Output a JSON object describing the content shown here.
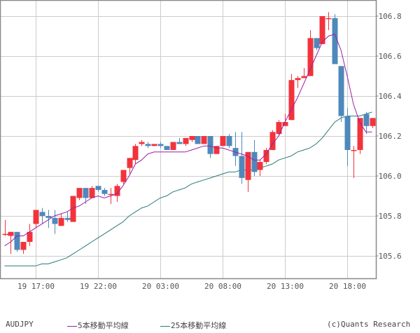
{
  "chart_data": {
    "type": "candlestick",
    "symbol": "AUDJPY",
    "interval_minutes": 30,
    "ylim": [
      105.51,
      106.88
    ],
    "y_ticks": [
      105.6,
      105.8,
      106.0,
      106.2,
      106.4,
      106.6,
      106.8
    ],
    "x_ticks": [
      {
        "label": "19 17:00",
        "index": 5
      },
      {
        "label": "19 22:00",
        "index": 15
      },
      {
        "label": "20 03:00",
        "index": 25
      },
      {
        "label": "20 08:00",
        "index": 35
      },
      {
        "label": "20 13:00",
        "index": 45
      },
      {
        "label": "20 18:00",
        "index": 55
      }
    ],
    "grid": true,
    "legend_position": "bottom",
    "candles": [
      {
        "o": 105.71,
        "h": 105.78,
        "l": 105.7,
        "c": 105.71
      },
      {
        "o": 105.7,
        "h": 105.72,
        "l": 105.61,
        "c": 105.72
      },
      {
        "o": 105.72,
        "h": 105.72,
        "l": 105.62,
        "c": 105.63
      },
      {
        "o": 105.63,
        "h": 105.67,
        "l": 105.61,
        "c": 105.67
      },
      {
        "o": 105.67,
        "h": 105.76,
        "l": 105.65,
        "c": 105.72
      },
      {
        "o": 105.76,
        "h": 105.83,
        "l": 105.74,
        "c": 105.83
      },
      {
        "o": 105.82,
        "h": 105.84,
        "l": 105.76,
        "c": 105.8
      },
      {
        "o": 105.8,
        "h": 105.83,
        "l": 105.74,
        "c": 105.79
      },
      {
        "o": 105.79,
        "h": 105.83,
        "l": 105.71,
        "c": 105.76
      },
      {
        "o": 105.75,
        "h": 105.81,
        "l": 105.75,
        "c": 105.79
      },
      {
        "o": 105.79,
        "h": 105.82,
        "l": 105.77,
        "c": 105.78
      },
      {
        "o": 105.77,
        "h": 105.9,
        "l": 105.77,
        "c": 105.9
      },
      {
        "o": 105.89,
        "h": 105.93,
        "l": 105.88,
        "c": 105.94
      },
      {
        "o": 105.94,
        "h": 105.94,
        "l": 105.86,
        "c": 105.89
      },
      {
        "o": 105.89,
        "h": 105.95,
        "l": 105.89,
        "c": 105.94
      },
      {
        "o": 105.95,
        "h": 105.95,
        "l": 105.92,
        "c": 105.93
      },
      {
        "o": 105.93,
        "h": 105.94,
        "l": 105.9,
        "c": 105.91
      },
      {
        "o": 105.91,
        "h": 105.94,
        "l": 105.86,
        "c": 105.91
      },
      {
        "o": 105.9,
        "h": 105.96,
        "l": 105.87,
        "c": 105.95
      },
      {
        "o": 105.97,
        "h": 106.03,
        "l": 105.96,
        "c": 106.03
      },
      {
        "o": 106.04,
        "h": 106.09,
        "l": 106.01,
        "c": 106.09
      },
      {
        "o": 106.08,
        "h": 106.16,
        "l": 106.06,
        "c": 106.15
      },
      {
        "o": 106.16,
        "h": 106.18,
        "l": 106.15,
        "c": 106.17
      },
      {
        "o": 106.16,
        "h": 106.17,
        "l": 106.14,
        "c": 106.15
      },
      {
        "o": 106.15,
        "h": 106.16,
        "l": 106.15,
        "c": 106.16
      },
      {
        "o": 106.16,
        "h": 106.17,
        "l": 106.14,
        "c": 106.15
      },
      {
        "o": 106.15,
        "h": 106.15,
        "l": 106.14,
        "c": 106.13
      },
      {
        "o": 106.13,
        "h": 106.17,
        "l": 106.13,
        "c": 106.17
      },
      {
        "o": 106.17,
        "h": 106.19,
        "l": 106.16,
        "c": 106.16
      },
      {
        "o": 106.16,
        "h": 106.19,
        "l": 106.15,
        "c": 106.19
      },
      {
        "o": 106.18,
        "h": 106.2,
        "l": 106.17,
        "c": 106.2
      },
      {
        "o": 106.2,
        "h": 106.2,
        "l": 106.16,
        "c": 106.16
      },
      {
        "o": 106.16,
        "h": 106.2,
        "l": 106.16,
        "c": 106.2
      },
      {
        "o": 106.2,
        "h": 106.2,
        "l": 106.09,
        "c": 106.11
      },
      {
        "o": 106.11,
        "h": 106.15,
        "l": 106.11,
        "c": 106.15
      },
      {
        "o": 106.15,
        "h": 106.2,
        "l": 106.15,
        "c": 106.2
      },
      {
        "o": 106.2,
        "h": 106.21,
        "l": 106.14,
        "c": 106.15
      },
      {
        "o": 106.14,
        "h": 106.22,
        "l": 106.05,
        "c": 106.1
      },
      {
        "o": 106.1,
        "h": 106.22,
        "l": 105.96,
        "c": 105.99
      },
      {
        "o": 105.98,
        "h": 106.11,
        "l": 105.92,
        "c": 106.12
      },
      {
        "o": 106.12,
        "h": 106.18,
        "l": 106.0,
        "c": 106.02
      },
      {
        "o": 106.03,
        "h": 106.08,
        "l": 106.0,
        "c": 106.07
      },
      {
        "o": 106.07,
        "h": 106.14,
        "l": 106.06,
        "c": 106.13
      },
      {
        "o": 106.13,
        "h": 106.23,
        "l": 106.13,
        "c": 106.22
      },
      {
        "o": 106.21,
        "h": 106.28,
        "l": 106.2,
        "c": 106.27
      },
      {
        "o": 106.25,
        "h": 106.31,
        "l": 106.25,
        "c": 106.27
      },
      {
        "o": 106.28,
        "h": 106.51,
        "l": 106.28,
        "c": 106.48
      },
      {
        "o": 106.48,
        "h": 106.5,
        "l": 106.44,
        "c": 106.49
      },
      {
        "o": 106.49,
        "h": 106.54,
        "l": 106.49,
        "c": 106.5
      },
      {
        "o": 106.5,
        "h": 106.73,
        "l": 106.5,
        "c": 106.69
      },
      {
        "o": 106.69,
        "h": 106.69,
        "l": 106.63,
        "c": 106.64
      },
      {
        "o": 106.66,
        "h": 106.8,
        "l": 106.66,
        "c": 106.8
      },
      {
        "o": 106.79,
        "h": 106.82,
        "l": 106.73,
        "c": 106.79
      },
      {
        "o": 106.79,
        "h": 106.81,
        "l": 106.56,
        "c": 106.56
      },
      {
        "o": 106.55,
        "h": 106.55,
        "l": 106.27,
        "c": 106.3
      },
      {
        "o": 106.3,
        "h": 106.34,
        "l": 106.05,
        "c": 106.13
      },
      {
        "o": 106.13,
        "h": 106.15,
        "l": 105.99,
        "c": 106.13
      },
      {
        "o": 106.13,
        "h": 106.29,
        "l": 106.11,
        "c": 106.29
      },
      {
        "o": 106.31,
        "h": 106.32,
        "l": 106.21,
        "c": 106.25
      },
      {
        "o": 106.25,
        "h": 106.29,
        "l": 106.24,
        "c": 106.29
      }
    ],
    "series": [
      {
        "name": "5本移動平均線",
        "color": "#9b1fa8",
        "values": [
          105.65,
          105.67,
          105.7,
          105.7,
          105.72,
          105.74,
          105.76,
          105.78,
          105.8,
          105.81,
          105.82,
          105.84,
          105.85,
          105.87,
          105.89,
          105.9,
          105.89,
          105.9,
          105.91,
          105.95,
          106.0,
          106.06,
          106.08,
          106.11,
          106.12,
          106.12,
          106.12,
          106.12,
          106.12,
          106.12,
          106.13,
          106.14,
          106.15,
          106.15,
          106.14,
          106.14,
          106.13,
          106.12,
          106.11,
          106.1,
          106.08,
          106.08,
          106.11,
          106.16,
          106.2,
          106.27,
          106.33,
          106.39,
          106.46,
          106.53,
          106.6,
          106.67,
          106.7,
          106.71,
          106.63,
          106.5,
          106.36,
          106.27,
          106.22,
          106.22
        ]
      },
      {
        "name": "25本移動平均線",
        "color": "#2a7a78",
        "values": [
          105.55,
          105.55,
          105.55,
          105.55,
          105.55,
          105.55,
          105.56,
          105.56,
          105.57,
          105.58,
          105.59,
          105.61,
          105.63,
          105.65,
          105.67,
          105.69,
          105.71,
          105.73,
          105.75,
          105.77,
          105.8,
          105.82,
          105.84,
          105.85,
          105.87,
          105.89,
          105.9,
          105.92,
          105.93,
          105.94,
          105.96,
          105.97,
          105.98,
          105.99,
          106.0,
          106.01,
          106.02,
          106.02,
          106.03,
          106.03,
          106.03,
          106.04,
          106.05,
          106.06,
          106.08,
          106.09,
          106.1,
          106.12,
          106.13,
          106.14,
          106.16,
          106.19,
          106.23,
          106.27,
          106.29,
          106.3,
          106.3,
          106.3,
          106.31,
          106.32
        ]
      }
    ]
  },
  "legend": {
    "symbol": "AUDJPY",
    "ma5_label": "5本移動平均線",
    "ma25_label": "25本移動平均線",
    "credit": "(c)Quants Research"
  },
  "colors": {
    "up": "#f2333b",
    "down": "#4f88bb",
    "grid": "#cccccc",
    "frame": "#888888",
    "axis_text": "#555555"
  }
}
